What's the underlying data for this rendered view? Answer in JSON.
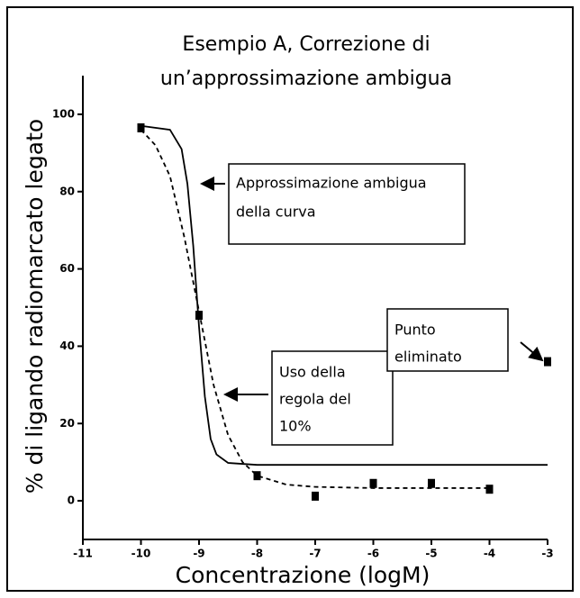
{
  "chart_data": {
    "type": "scatter",
    "title": [
      "Esempio A, Correzione di",
      "un’approssimazione ambigua"
    ],
    "x_label": "Concentrazione (logM)",
    "y_label": "% di ligando radiomarcato legato",
    "xlim": [
      -11,
      -3
    ],
    "ylim": [
      -10,
      110
    ],
    "xticks": [
      -11,
      -10,
      -9,
      -8,
      -7,
      -6,
      -5,
      -4,
      -3
    ],
    "yticks": [
      0,
      20,
      40,
      60,
      80,
      100
    ],
    "color": "#000000",
    "points": {
      "x": [
        -10,
        -9,
        -8,
        -7,
        -6,
        -5,
        -4,
        -3
      ],
      "values": [
        96.5,
        48,
        6.5,
        1.2,
        4.5,
        4.5,
        3,
        36
      ]
    },
    "curves": [
      {
        "style": "solid",
        "x": [
          -10,
          -9.5,
          -9.3,
          -9.2,
          -9.1,
          -9.0,
          -8.9,
          -8.8,
          -8.7,
          -8.5,
          -8.0,
          -3
        ],
        "values": [
          97,
          96,
          91,
          82,
          66,
          45,
          27,
          16,
          12,
          9.8,
          9.3,
          9.3
        ]
      },
      {
        "style": "dashed",
        "x": [
          -10,
          -9.75,
          -9.5,
          -9.25,
          -9,
          -8.75,
          -8.5,
          -8.25,
          -8,
          -7.5,
          -7,
          -6,
          -4
        ],
        "values": [
          96,
          92,
          84,
          68,
          49,
          30,
          17,
          10,
          6.5,
          4.2,
          3.6,
          3.3,
          3.3
        ]
      }
    ],
    "annotations": [
      [
        "Approssimazione ambigua",
        "della curva"
      ],
      [
        "Uso della",
        "regola del",
        "10%"
      ],
      [
        "Punto",
        "eliminato"
      ]
    ]
  }
}
